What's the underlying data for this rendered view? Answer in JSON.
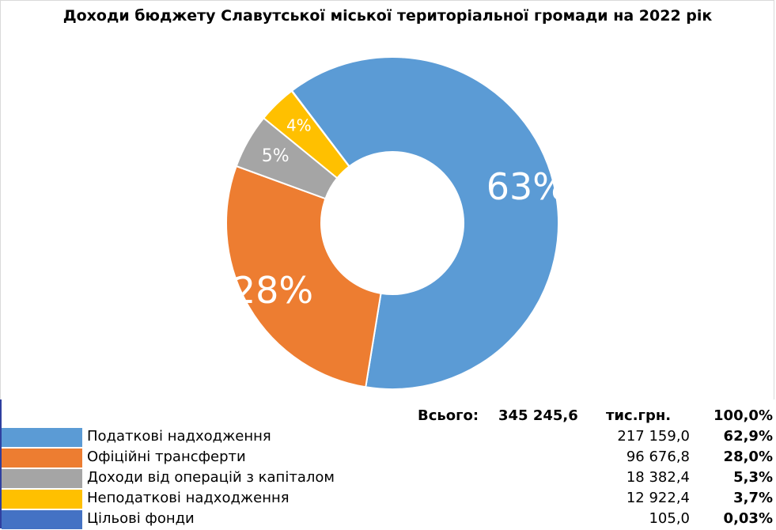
{
  "chart_data": {
    "type": "pie",
    "subtype": "donut",
    "title": "Доходи бюджету Славутської міської територіальної громади на 2022 рік",
    "slices": [
      {
        "label": "Податкові надходження",
        "value": 217159.0,
        "value_text": "217 159,0",
        "percent_text": "62,9%",
        "data_label": "63%",
        "color": "#5b9bd5"
      },
      {
        "label": "Офіційні трансферти",
        "value": 96676.8,
        "value_text": "96 676,8",
        "percent_text": "28,0%",
        "data_label": "28%",
        "color": "#ed7d31"
      },
      {
        "label": "Доходи від операцій з капіталом",
        "value": 18382.4,
        "value_text": "18 382,4",
        "percent_text": "5,3%",
        "data_label": "5%",
        "color": "#a5a5a5"
      },
      {
        "label": "Неподаткові надходження",
        "value": 12922.4,
        "value_text": "12 922,4",
        "percent_text": "3,7%",
        "data_label": "4%",
        "color": "#ffc000"
      },
      {
        "label": "Цільові фонди",
        "value": 105.0,
        "value_text": "105,0",
        "percent_text": "0,03%",
        "data_label": "",
        "color": "#4472c4"
      }
    ],
    "total": {
      "label": "Всього:",
      "value": 345245.6,
      "value_text": "345 245,6",
      "unit": "тис.грн.",
      "percent_text": "100,0%"
    }
  }
}
